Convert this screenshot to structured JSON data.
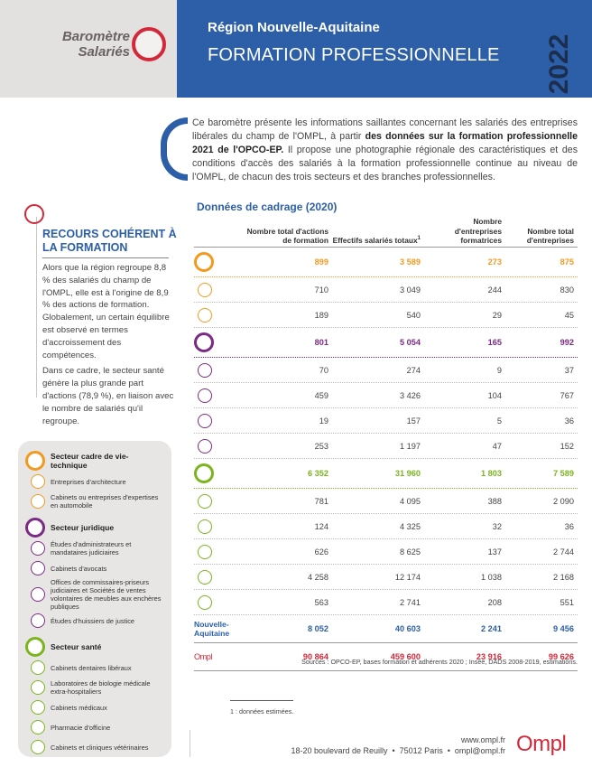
{
  "header": {
    "brand": [
      "Baromètre",
      "Salariés"
    ],
    "region": "Région Nouvelle-Aquitaine",
    "title": "FORMATION PROFESSIONNELLE",
    "year": "2022"
  },
  "intro": {
    "text_before": "Ce baromètre présente les informations saillantes concernant les salariés des entreprises libérales du champ de l'OMPL, à partir ",
    "bold": "des données sur la formation professionnelle 2021 de l'OPCO-EP.",
    "text_after": " Il propose une photographie régionale des caractéristiques et des conditions d'accès des salariés à la formation professionnelle continue au niveau de l'OMPL, de chacun des trois secteurs et des branches professionnelles."
  },
  "sidebar": {
    "title": "RECOURS COHÉRENT À LA FORMATION",
    "paragraphs": [
      "Alors que la région regroupe 8,8 % des salariés du champ de l'OMPL, elle est à l'origine de 8,9 % des actions de formation. Globalement, un certain équilibre est observé en termes d'accroissement des compétences.",
      "Dans ce cadre, le secteur santé génère la plus grande part d'actions (78,9 %), en liaison avec le nombre de salariés qu'il regroupe."
    ]
  },
  "table": {
    "title": "Données de cadrage (2020)",
    "columns": [
      {
        "label": "Nombre total d'actions de formation"
      },
      {
        "label": "Effectifs salariés totaux",
        "note": "1"
      },
      {
        "label": "Nombre d'entreprises formatrices"
      },
      {
        "label": "Nombre total d'entreprises"
      }
    ],
    "groups": [
      {
        "color": "#f29a1f",
        "values": [
          "899",
          "3 589",
          "273",
          "875"
        ],
        "rows": [
          [
            "710",
            "3 049",
            "244",
            "830"
          ],
          [
            "189",
            "540",
            "29",
            "45"
          ]
        ]
      },
      {
        "color": "#7b2b83",
        "values": [
          "801",
          "5 054",
          "165",
          "992"
        ],
        "rows": [
          [
            "70",
            "274",
            "9",
            "37"
          ],
          [
            "459",
            "3 426",
            "104",
            "767"
          ],
          [
            "19",
            "157",
            "5",
            "36"
          ],
          [
            "253",
            "1 197",
            "47",
            "152"
          ]
        ]
      },
      {
        "color": "#7ab51d",
        "values": [
          "6 352",
          "31 960",
          "1 803",
          "7 589"
        ],
        "rows": [
          [
            "781",
            "4 095",
            "388",
            "2 090"
          ],
          [
            "124",
            "4 325",
            "32",
            "36"
          ],
          [
            "626",
            "8 625",
            "137",
            "2 744"
          ],
          [
            "4 258",
            "12 174",
            "1 038",
            "2 168"
          ],
          [
            "563",
            "2 741",
            "208",
            "551"
          ]
        ]
      }
    ],
    "totals": [
      {
        "label": "Nouvelle-Aquitaine",
        "color": "#2c5fa8",
        "values": [
          "8 052",
          "40 603",
          "2 241",
          "9 456"
        ]
      },
      {
        "label": "Ompl",
        "color": "#d3283a",
        "values": [
          "90 864",
          "459 600",
          "23 916",
          "99 626"
        ]
      }
    ],
    "sources": "Sources : OPCO-EP, bases formation et adhérents 2020 ; Insee, DADS 2008-2019, estimations."
  },
  "legend": [
    {
      "name": "Secteur cadre de vie-technique",
      "items": [
        "Entreprises d'architecture",
        "Cabinets ou entreprises d'expertises en automobile"
      ]
    },
    {
      "name": "Secteur juridique",
      "items": [
        "Études d'administrateurs et mandataires judiciaires",
        "Cabinets d'avocats",
        "Offices de commissaires-priseurs judiciaires et Sociétés de ventes volontaires de meubles aux enchères publiques",
        "Études d'huissiers de justice"
      ]
    },
    {
      "name": "Secteur santé",
      "items": [
        "Cabinets dentaires libéraux",
        "Laboratoires de biologie médicale extra-hospitaliers",
        "Cabinets médicaux",
        "Pharmacie d'officine",
        "Cabinets et cliniques vétérinaires"
      ]
    }
  ],
  "footnote": "1 : données estimées.",
  "footer": {
    "web": "www.ompl.fr",
    "address": "18-20 boulevard de Reuilly  •  75012 Paris  •  ompl@ompl.fr",
    "logo": "Ompl"
  }
}
